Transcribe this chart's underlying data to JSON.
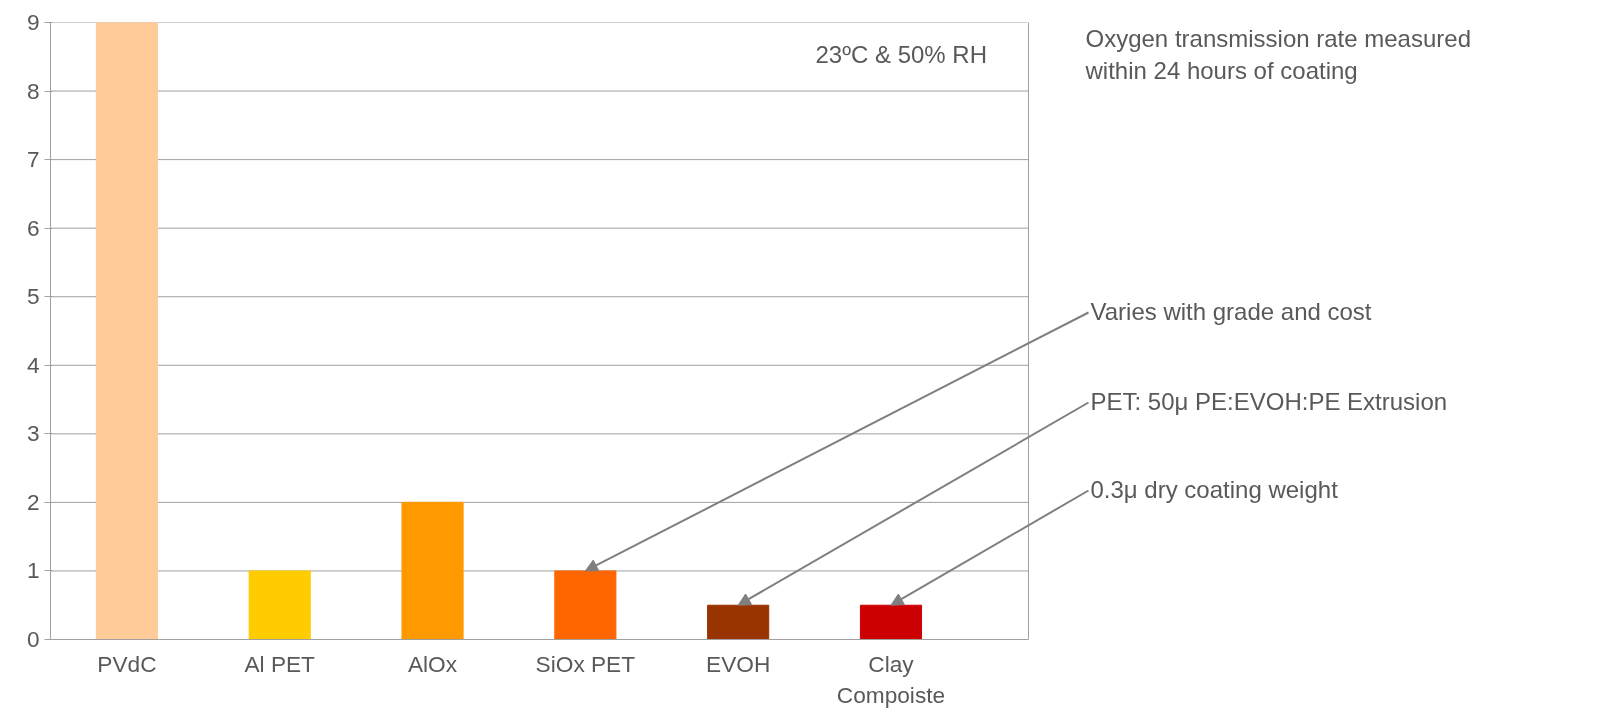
{
  "chart_data": {
    "type": "bar",
    "categories": [
      "PVdC",
      "Al PET",
      "AlOx",
      "SiOx PET",
      "EVOH",
      "Clay\nCompoiste"
    ],
    "values": [
      9,
      1,
      2,
      1,
      0.5,
      0.5
    ],
    "colors": [
      "#ffcc99",
      "#ffcc00",
      "#ff9900",
      "#ff6600",
      "#993300",
      "#cc0000"
    ],
    "ylim": [
      0,
      9
    ],
    "yticks": [
      0,
      1,
      2,
      3,
      4,
      5,
      6,
      7,
      8,
      9
    ],
    "grid": "y",
    "annotations": [
      "23ºC & 50% RH",
      "Oxygen transmission rate measured\nwithin 24 hours of coating",
      {
        "text": "Varies with grade and cost",
        "x": "SiOx PET",
        "y": 1
      },
      {
        "text": "PET: 50μ PE:EVOH:PE Extrusion",
        "x": "EVOH",
        "y": 0.5
      },
      {
        "text": "0.3μ dry coating weight",
        "x": "Clay\nCompoiste",
        "y": 0.5
      }
    ]
  }
}
